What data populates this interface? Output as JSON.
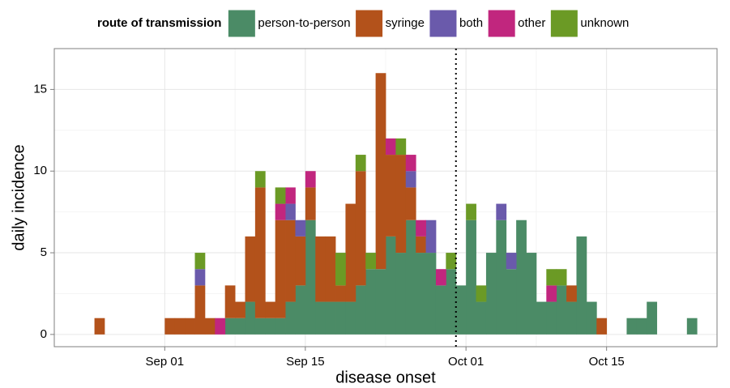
{
  "chart_data": {
    "type": "stacked-histogram",
    "legend_title": "route of transmission",
    "legend_position": "top",
    "x_label": "disease onset",
    "y_label": "daily incidence",
    "x": [
      "Aug 25",
      "Aug 26",
      "Aug 27",
      "Aug 28",
      "Aug 29",
      "Aug 30",
      "Aug 31",
      "Sep 01",
      "Sep 02",
      "Sep 03",
      "Sep 04",
      "Sep 05",
      "Sep 06",
      "Sep 07",
      "Sep 08",
      "Sep 09",
      "Sep 10",
      "Sep 11",
      "Sep 12",
      "Sep 13",
      "Sep 14",
      "Sep 15",
      "Sep 16",
      "Sep 17",
      "Sep 18",
      "Sep 19",
      "Sep 20",
      "Sep 21",
      "Sep 22",
      "Sep 23",
      "Sep 24",
      "Sep 25",
      "Sep 26",
      "Sep 27",
      "Sep 28",
      "Sep 29",
      "Sep 30",
      "Oct 01",
      "Oct 02",
      "Oct 03",
      "Oct 04",
      "Oct 05",
      "Oct 06",
      "Oct 07",
      "Oct 08",
      "Oct 09",
      "Oct 10",
      "Oct 11",
      "Oct 12",
      "Oct 13",
      "Oct 14",
      "Oct 15",
      "Oct 16",
      "Oct 17",
      "Oct 18",
      "Oct 19",
      "Oct 20",
      "Oct 21",
      "Oct 22",
      "Oct 23"
    ],
    "series": [
      {
        "name": "person-to-person",
        "color": "#4b8b66",
        "values": [
          0,
          0,
          0,
          0,
          0,
          0,
          0,
          0,
          0,
          0,
          0,
          0,
          0,
          1,
          1,
          2,
          1,
          1,
          1,
          2,
          3,
          7,
          2,
          2,
          2,
          2,
          3,
          4,
          4,
          6,
          5,
          7,
          5,
          5,
          3,
          4,
          3,
          7,
          2,
          5,
          7,
          4,
          7,
          5,
          2,
          2,
          3,
          2,
          6,
          2,
          0,
          0,
          0,
          1,
          1,
          2,
          0,
          0,
          0,
          1
        ]
      },
      {
        "name": "syringe",
        "color": "#b3521b",
        "values": [
          1,
          0,
          0,
          0,
          0,
          0,
          0,
          1,
          1,
          1,
          3,
          1,
          0,
          2,
          1,
          4,
          8,
          1,
          6,
          5,
          3,
          2,
          4,
          4,
          1,
          6,
          7,
          0,
          12,
          5,
          6,
          2,
          1,
          0,
          0,
          0,
          0,
          0,
          0,
          0,
          0,
          0,
          0,
          0,
          0,
          0,
          0,
          1,
          0,
          0,
          1,
          0,
          0,
          0,
          0,
          0,
          0,
          0,
          0,
          0
        ]
      },
      {
        "name": "both",
        "color": "#6a5aab",
        "values": [
          0,
          0,
          0,
          0,
          0,
          0,
          0,
          0,
          0,
          0,
          1,
          0,
          0,
          0,
          0,
          0,
          0,
          0,
          0,
          1,
          1,
          0,
          0,
          0,
          0,
          0,
          0,
          0,
          0,
          0,
          0,
          1,
          0,
          2,
          0,
          0,
          0,
          0,
          0,
          0,
          1,
          1,
          0,
          0,
          0,
          0,
          0,
          0,
          0,
          0,
          0,
          0,
          0,
          0,
          0,
          0,
          0,
          0,
          0,
          0
        ]
      },
      {
        "name": "other",
        "color": "#c1267e",
        "values": [
          0,
          0,
          0,
          0,
          0,
          0,
          0,
          0,
          0,
          0,
          0,
          0,
          1,
          0,
          0,
          0,
          0,
          0,
          1,
          1,
          0,
          1,
          0,
          0,
          0,
          0,
          0,
          0,
          0,
          1,
          0,
          1,
          1,
          0,
          1,
          0,
          0,
          0,
          0,
          0,
          0,
          0,
          0,
          0,
          0,
          1,
          0,
          0,
          0,
          0,
          0,
          0,
          0,
          0,
          0,
          0,
          0,
          0,
          0,
          0
        ]
      },
      {
        "name": "unknown",
        "color": "#6b9a25",
        "values": [
          0,
          0,
          0,
          0,
          0,
          0,
          0,
          0,
          0,
          0,
          1,
          0,
          0,
          0,
          0,
          0,
          1,
          0,
          1,
          0,
          0,
          0,
          0,
          0,
          2,
          0,
          1,
          1,
          0,
          0,
          1,
          0,
          0,
          0,
          0,
          1,
          0,
          1,
          1,
          0,
          0,
          0,
          0,
          0,
          0,
          1,
          1,
          0,
          0,
          0,
          0,
          0,
          0,
          0,
          0,
          0,
          0,
          0,
          0,
          0
        ]
      }
    ],
    "xlim": [
      "Aug 21",
      "Oct 26"
    ],
    "xticks": [
      "Sep 01",
      "Sep 15",
      "Oct 01",
      "Oct 15"
    ],
    "ylim": [
      -0.75,
      17.5
    ],
    "yticks": [
      0,
      5,
      10,
      15
    ],
    "vline": "Sep 30",
    "grid": true
  }
}
